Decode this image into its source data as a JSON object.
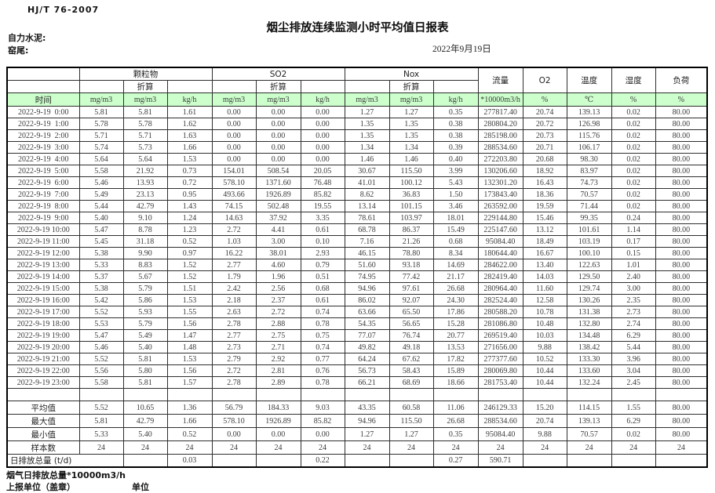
{
  "header": {
    "standard_code": "HJ/T  76-2007",
    "title": "烟尘排放连续监测小时平均值日报表",
    "company": "自力水泥:",
    "kiln": "窑尾:",
    "date": "2022年9月19日"
  },
  "table": {
    "time_label": "时间",
    "converted_label": "折算",
    "groups": [
      "颗粒物",
      "SO2",
      "Nox"
    ],
    "extra_cols": [
      "流量",
      "O2",
      "温度",
      "湿度",
      "负荷"
    ],
    "units": [
      "mg/m3",
      "mg/m3",
      "kg/h",
      "mg/m3",
      "mg/m3",
      "kg/h",
      "mg/m3",
      "mg/m3",
      "kg/h",
      "*10000m3/h",
      "%",
      "℃",
      "%",
      "%"
    ],
    "header_green_color": "#ccffcc",
    "rows": [
      {
        "time": "2022-9-19  0:00",
        "values": [
          "5.81",
          "5.81",
          "1.61",
          "0.00",
          "0.00",
          "0.00",
          "1.27",
          "1.27",
          "0.35",
          "277817.40",
          "20.74",
          "139.13",
          "0.02",
          "80.00"
        ]
      },
      {
        "time": "2022-9-19  1:00",
        "values": [
          "5.78",
          "5.78",
          "1.62",
          "0.00",
          "0.00",
          "0.00",
          "1.35",
          "1.35",
          "0.38",
          "280804.20",
          "20.72",
          "126.98",
          "0.02",
          "80.00"
        ]
      },
      {
        "time": "2022-9-19  2:00",
        "values": [
          "5.71",
          "5.71",
          "1.63",
          "0.00",
          "0.00",
          "0.00",
          "1.35",
          "1.35",
          "0.38",
          "285198.00",
          "20.73",
          "115.76",
          "0.02",
          "80.00"
        ]
      },
      {
        "time": "2022-9-19  3:00",
        "values": [
          "5.74",
          "5.73",
          "1.66",
          "0.00",
          "0.00",
          "0.00",
          "1.34",
          "1.34",
          "0.39",
          "288534.60",
          "20.71",
          "106.17",
          "0.02",
          "80.00"
        ]
      },
      {
        "time": "2022-9-19  4:00",
        "values": [
          "5.64",
          "5.64",
          "1.53",
          "0.00",
          "0.00",
          "0.00",
          "1.46",
          "1.46",
          "0.40",
          "272203.80",
          "20.68",
          "98.30",
          "0.02",
          "80.00"
        ]
      },
      {
        "time": "2022-9-19  5:00",
        "values": [
          "5.58",
          "21.92",
          "0.73",
          "154.01",
          "508.54",
          "20.05",
          "30.67",
          "115.50",
          "3.99",
          "130206.60",
          "18.92",
          "83.97",
          "0.02",
          "80.00"
        ]
      },
      {
        "time": "2022-9-19  6:00",
        "values": [
          "5.46",
          "13.93",
          "0.72",
          "578.10",
          "1371.60",
          "76.48",
          "41.01",
          "100.12",
          "5.43",
          "132301.20",
          "16.43",
          "74.73",
          "0.02",
          "80.00"
        ]
      },
      {
        "time": "2022-9-19  7:00",
        "values": [
          "5.49",
          "23.13",
          "0.95",
          "493.66",
          "1926.89",
          "85.82",
          "8.62",
          "36.83",
          "1.50",
          "173843.40",
          "18.36",
          "70.57",
          "0.02",
          "80.00"
        ]
      },
      {
        "time": "2022-9-19  8:00",
        "values": [
          "5.44",
          "42.79",
          "1.43",
          "74.15",
          "502.48",
          "19.55",
          "13.14",
          "101.15",
          "3.46",
          "263592.00",
          "19.59",
          "71.44",
          "0.02",
          "80.00"
        ]
      },
      {
        "time": "2022-9-19  9:00",
        "values": [
          "5.40",
          "9.10",
          "1.24",
          "14.63",
          "37.92",
          "3.35",
          "78.61",
          "103.97",
          "18.01",
          "229144.80",
          "15.46",
          "99.35",
          "0.24",
          "80.00"
        ]
      },
      {
        "time": "2022-9-19 10:00",
        "values": [
          "5.47",
          "8.78",
          "1.23",
          "2.72",
          "4.41",
          "0.61",
          "68.78",
          "86.37",
          "15.49",
          "225147.60",
          "13.12",
          "101.61",
          "1.14",
          "80.00"
        ]
      },
      {
        "time": "2022-9-19 11:00",
        "values": [
          "5.45",
          "31.18",
          "0.52",
          "1.03",
          "3.00",
          "0.10",
          "7.16",
          "21.26",
          "0.68",
          "95084.40",
          "18.49",
          "103.19",
          "0.17",
          "80.00"
        ]
      },
      {
        "time": "2022-9-19 12:00",
        "values": [
          "5.38",
          "9.90",
          "0.97",
          "16.22",
          "38.01",
          "2.93",
          "46.15",
          "78.80",
          "8.34",
          "180644.40",
          "16.67",
          "100.10",
          "0.15",
          "80.00"
        ]
      },
      {
        "time": "2022-9-19 13:00",
        "values": [
          "5.33",
          "8.83",
          "1.52",
          "2.77",
          "4.60",
          "0.79",
          "51.60",
          "93.18",
          "14.69",
          "284622.00",
          "13.40",
          "122.63",
          "1.01",
          "80.00"
        ]
      },
      {
        "time": "2022-9-19 14:00",
        "values": [
          "5.37",
          "5.67",
          "1.52",
          "1.79",
          "1.96",
          "0.51",
          "74.95",
          "77.42",
          "21.17",
          "282419.40",
          "14.03",
          "129.50",
          "2.40",
          "80.00"
        ]
      },
      {
        "time": "2022-9-19 15:00",
        "values": [
          "5.38",
          "5.79",
          "1.51",
          "2.42",
          "2.56",
          "0.68",
          "94.96",
          "97.61",
          "26.68",
          "280964.40",
          "11.60",
          "129.74",
          "3.00",
          "80.00"
        ]
      },
      {
        "time": "2022-9-19 16:00",
        "values": [
          "5.42",
          "5.86",
          "1.53",
          "2.18",
          "2.37",
          "0.61",
          "86.02",
          "92.07",
          "24.30",
          "282524.40",
          "12.58",
          "130.26",
          "2.35",
          "80.00"
        ]
      },
      {
        "time": "2022-9-19 17:00",
        "values": [
          "5.52",
          "5.93",
          "1.55",
          "2.63",
          "2.72",
          "0.74",
          "63.66",
          "65.50",
          "17.86",
          "280588.20",
          "10.78",
          "131.38",
          "2.73",
          "80.00"
        ]
      },
      {
        "time": "2022-9-19 18:00",
        "values": [
          "5.53",
          "5.79",
          "1.56",
          "2.78",
          "2.88",
          "0.78",
          "54.35",
          "56.65",
          "15.28",
          "281086.80",
          "10.48",
          "132.80",
          "2.74",
          "80.00"
        ]
      },
      {
        "time": "2022-9-19 19:00",
        "values": [
          "5.47",
          "5.49",
          "1.47",
          "2.77",
          "2.75",
          "0.75",
          "77.07",
          "76.74",
          "20.77",
          "269519.40",
          "10.03",
          "134.48",
          "6.29",
          "80.00"
        ]
      },
      {
        "time": "2022-9-19 20:00",
        "values": [
          "5.46",
          "5.40",
          "1.48",
          "2.73",
          "2.71",
          "0.74",
          "49.82",
          "49.18",
          "13.53",
          "271656.00",
          "9.88",
          "138.42",
          "5.44",
          "80.00"
        ]
      },
      {
        "time": "2022-9-19 21:00",
        "values": [
          "5.52",
          "5.81",
          "1.53",
          "2.79",
          "2.92",
          "0.77",
          "64.24",
          "67.62",
          "17.82",
          "277377.60",
          "10.52",
          "133.30",
          "3.96",
          "80.00"
        ]
      },
      {
        "time": "2022-9-19 22:00",
        "values": [
          "5.56",
          "5.80",
          "1.56",
          "2.72",
          "2.81",
          "0.76",
          "56.73",
          "58.43",
          "15.89",
          "280069.80",
          "10.44",
          "133.60",
          "3.04",
          "80.00"
        ]
      },
      {
        "time": "2022-9-19 23:00",
        "values": [
          "5.58",
          "5.81",
          "1.57",
          "2.78",
          "2.89",
          "0.78",
          "66.21",
          "68.69",
          "18.66",
          "281753.40",
          "10.44",
          "132.24",
          "2.45",
          "80.00"
        ]
      }
    ],
    "summary": [
      {
        "label": "平均值",
        "values": [
          "5.52",
          "10.65",
          "1.36",
          "56.79",
          "184.33",
          "9.03",
          "43.35",
          "60.58",
          "11.06",
          "246129.33",
          "15.20",
          "114.15",
          "1.55",
          "80.00"
        ]
      },
      {
        "label": "最大值",
        "values": [
          "5.81",
          "42.79",
          "1.66",
          "578.10",
          "1926.89",
          "85.82",
          "94.96",
          "115.50",
          "26.68",
          "288534.60",
          "20.74",
          "139.13",
          "6.29",
          "80.00"
        ]
      },
      {
        "label": "最小值",
        "values": [
          "5.33",
          "5.40",
          "0.52",
          "0.00",
          "0.00",
          "0.00",
          "1.27",
          "1.27",
          "0.35",
          "95084.40",
          "9.88",
          "70.57",
          "0.02",
          "80.00"
        ]
      },
      {
        "label": "样本数",
        "values": [
          "24",
          "24",
          "24",
          "24",
          "24",
          "24",
          "24",
          "24",
          "24",
          "24",
          "24",
          "24",
          "24",
          "24"
        ]
      }
    ],
    "total_row": {
      "label": "日排放总量 (t/d)",
      "values": [
        "",
        "0.03",
        "",
        "",
        "0.22",
        "",
        "",
        "0.27",
        "590.71",
        "",
        "",
        "",
        ""
      ]
    }
  },
  "footer": {
    "flue_gas_note": "烟气日排放总量*10000m3/h",
    "reporting_unit": "上报单位（盖章）",
    "unit_label": "单位"
  }
}
